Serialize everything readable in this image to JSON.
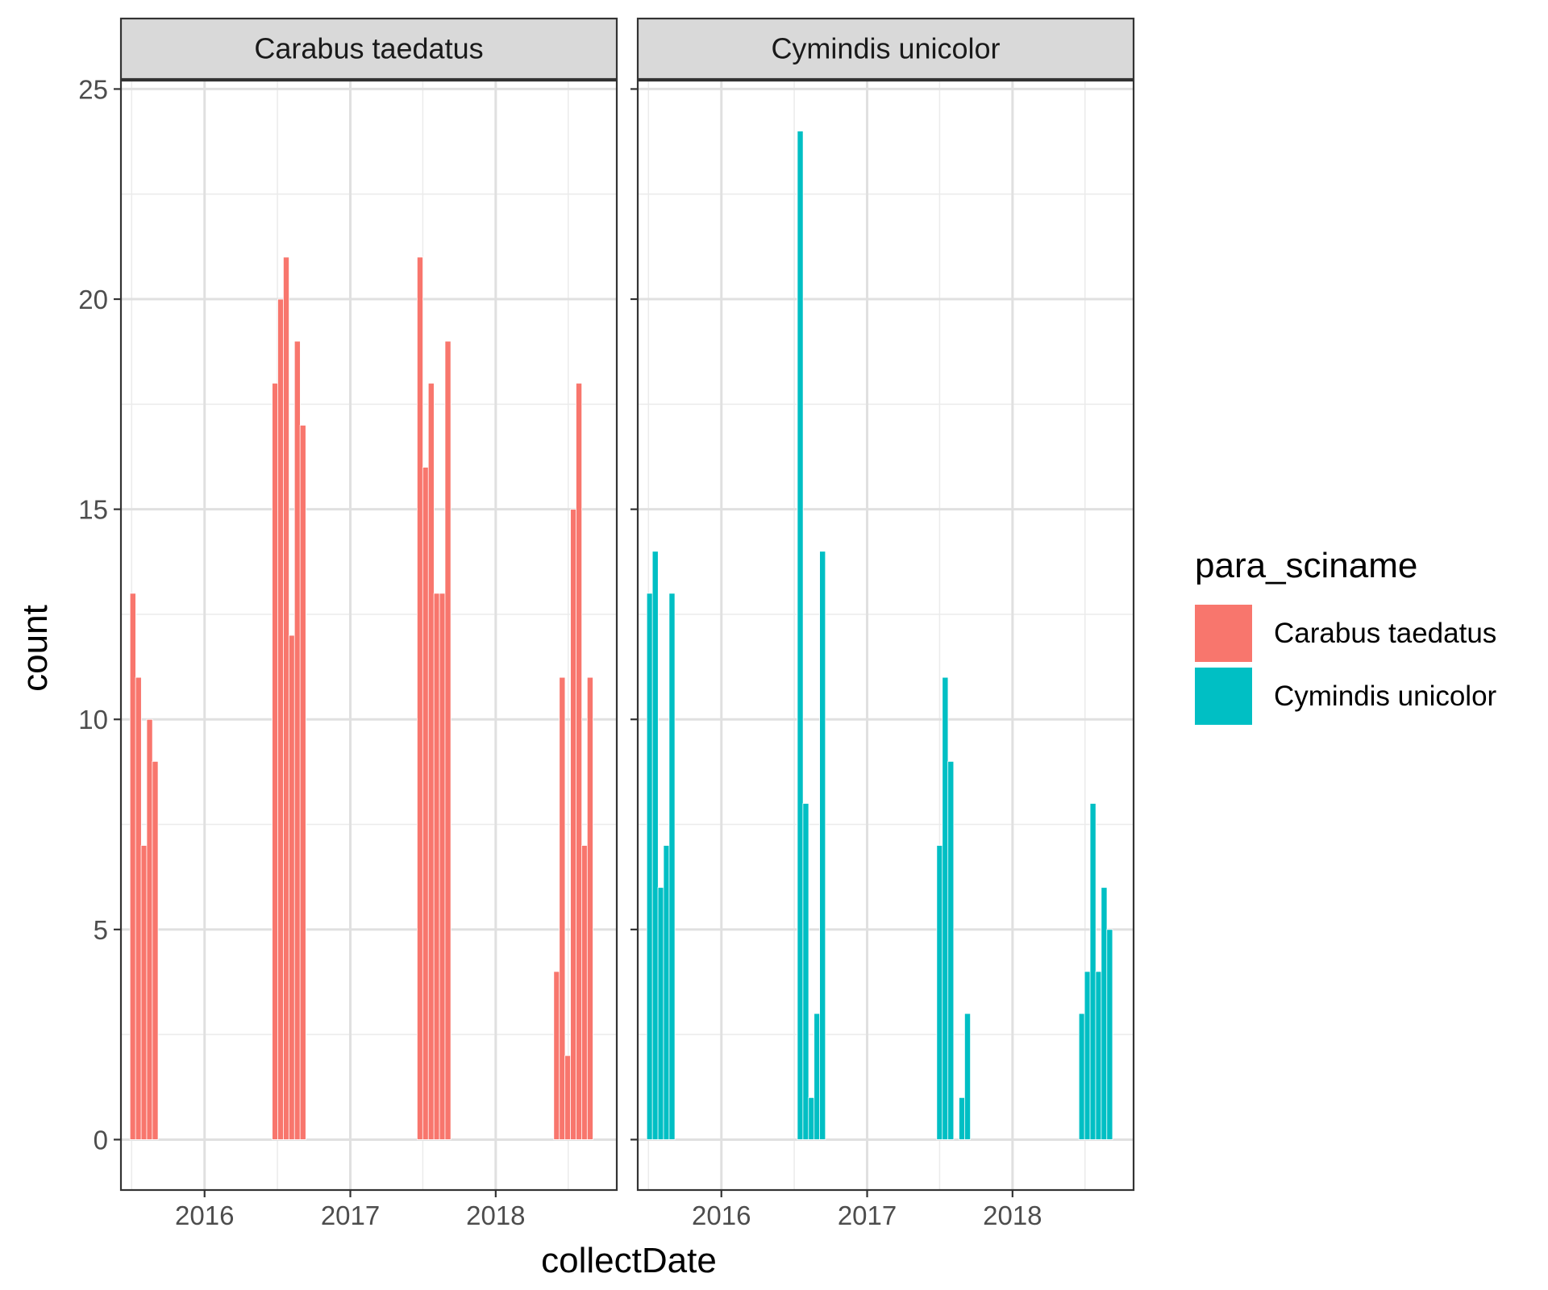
{
  "chart_data": {
    "type": "bar",
    "layout": "facet_wrap",
    "facet_titles": [
      "Carabus taedatus",
      "Cymindis unicolor"
    ],
    "xlabel": "collectDate",
    "ylabel": "count",
    "x_ticks": [
      "2016",
      "2017",
      "2018"
    ],
    "y_ticks": [
      0,
      5,
      10,
      15,
      20,
      25
    ],
    "ylim": [
      -1.2,
      25.2
    ],
    "xlim": [
      "2015-06-05",
      "2018-11-01"
    ],
    "grid": true,
    "legend": {
      "title": "para_sciname",
      "position": "right",
      "entries": [
        "Carabus taedatus",
        "Cymindis unicolor"
      ]
    },
    "colors": {
      "Carabus taedatus": "#F8766D",
      "Cymindis unicolor": "#00BFC4"
    },
    "series": [
      {
        "name": "Carabus taedatus",
        "x": [
          "2015-07-05",
          "2015-07-19",
          "2015-08-02",
          "2015-08-16",
          "2015-08-30",
          "2016-06-26",
          "2016-07-10",
          "2016-07-24",
          "2016-08-07",
          "2016-08-21",
          "2016-09-04",
          "2017-06-25",
          "2017-07-09",
          "2017-07-23",
          "2017-08-06",
          "2017-08-20",
          "2017-09-03",
          "2018-06-03",
          "2018-06-17",
          "2018-07-01",
          "2018-07-15",
          "2018-07-29",
          "2018-08-12",
          "2018-08-26"
        ],
        "values": [
          13,
          11,
          7,
          10,
          9,
          18,
          20,
          21,
          12,
          19,
          17,
          21,
          16,
          18,
          13,
          13,
          19,
          4,
          11,
          2,
          15,
          18,
          7,
          11
        ]
      },
      {
        "name": "Cymindis unicolor",
        "x": [
          "2015-07-05",
          "2015-07-19",
          "2015-08-02",
          "2015-08-16",
          "2015-08-30",
          "2016-07-17",
          "2016-07-31",
          "2016-08-14",
          "2016-08-28",
          "2016-09-11",
          "2017-07-02",
          "2017-07-16",
          "2017-07-30",
          "2017-08-27",
          "2017-09-10",
          "2018-06-24",
          "2018-07-08",
          "2018-07-22",
          "2018-08-05",
          "2018-08-19",
          "2018-09-02"
        ],
        "values": [
          13,
          14,
          6,
          7,
          13,
          24,
          8,
          1,
          3,
          14,
          7,
          11,
          9,
          1,
          3,
          3,
          4,
          8,
          4,
          6,
          5
        ]
      }
    ]
  }
}
